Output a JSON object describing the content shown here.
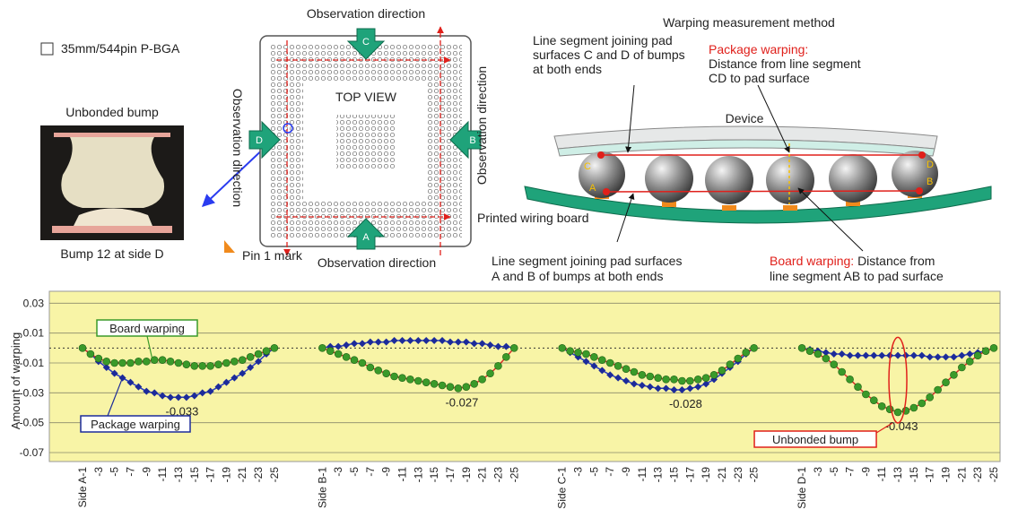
{
  "diagram": {
    "package_label": "35mm/544pin P-BGA",
    "photo_title": "Unbonded bump",
    "photo_caption": "Bump 12 at side D",
    "observation_direction": [
      "Observation direction",
      "Observation direction",
      "Observation direction",
      "Observation direction"
    ],
    "top_view": "TOP VIEW",
    "side_letters": [
      "C",
      "D",
      "B",
      "A"
    ],
    "pin_mark": "Pin 1 mark",
    "method_title": "Warping measurement method",
    "package_warping": {
      "term": "Package warping:",
      "lines": [
        "Distance from line segment",
        "CD to pad surface"
      ]
    },
    "cd_segment": [
      "Line segment joining pad",
      "surfaces C and D of bumps",
      "at both ends"
    ],
    "device": "Device",
    "board": "Printed wiring board",
    "bump_letters": [
      "C",
      "A",
      "D",
      "B"
    ],
    "ab_segment": [
      "Line segment joining pad surfaces",
      "A and B of bumps at both ends"
    ],
    "board_warping": {
      "term": "Board warping:",
      "lines": [
        "Distance from",
        "line segment AB to pad surface"
      ]
    }
  },
  "chart_data": {
    "type": "line",
    "y_label": "Amount of warping",
    "categories": [
      "Side A-1",
      null,
      "-3",
      null,
      "-5",
      null,
      "-7",
      null,
      "-9",
      null,
      "-11",
      null,
      "-13",
      null,
      "-15",
      null,
      "-17",
      null,
      "-19",
      null,
      "-21",
      null,
      "-23",
      null,
      "-25",
      null,
      null,
      null,
      null,
      null,
      "Side B-1",
      null,
      "-3",
      null,
      "-5",
      null,
      "-7",
      null,
      "-9",
      null,
      "-11",
      null,
      "-13",
      null,
      "-15",
      null,
      "-17",
      null,
      "-19",
      null,
      "-21",
      null,
      "-23",
      null,
      "-25",
      null,
      null,
      null,
      null,
      null,
      "Side C-1",
      null,
      "-3",
      null,
      "-5",
      null,
      "-7",
      null,
      "-9",
      null,
      "-11",
      null,
      "-13",
      null,
      "-15",
      null,
      "-17",
      null,
      "-19",
      null,
      "-21",
      null,
      "-23",
      null,
      "-25",
      null,
      null,
      null,
      null,
      null,
      "Side D-1",
      null,
      "-3",
      null,
      "-5",
      null,
      "-7",
      null,
      "-9",
      null,
      "-11",
      null,
      "-13",
      null,
      "-15",
      null,
      "-17",
      null,
      "-19",
      null,
      "-21",
      null,
      "-23",
      null,
      "-25"
    ],
    "series": [
      {
        "name": "Package warping",
        "color": "#1c2b9a",
        "line_color": "#2a3cc0",
        "values": [
          0,
          -0.004,
          -0.009,
          -0.013,
          -0.017,
          -0.02,
          -0.023,
          -0.026,
          -0.029,
          -0.03,
          -0.032,
          -0.033,
          -0.033,
          -0.033,
          -0.032,
          -0.03,
          -0.029,
          -0.026,
          -0.023,
          -0.02,
          -0.017,
          -0.013,
          -0.009,
          -0.004,
          0,
          null,
          null,
          null,
          null,
          null,
          0,
          0.001,
          0.001,
          0.002,
          0.003,
          0.003,
          0.004,
          0.004,
          0.004,
          0.005,
          0.005,
          0.005,
          0.005,
          0.005,
          0.005,
          0.005,
          0.004,
          0.004,
          0.004,
          0.003,
          0.003,
          0.002,
          0.001,
          0.001,
          0,
          null,
          null,
          null,
          null,
          null,
          0,
          -0.003,
          -0.006,
          -0.009,
          -0.012,
          -0.015,
          -0.018,
          -0.02,
          -0.022,
          -0.024,
          -0.025,
          -0.026,
          -0.027,
          -0.027,
          -0.028,
          -0.028,
          -0.027,
          -0.026,
          -0.024,
          -0.021,
          -0.017,
          -0.013,
          -0.009,
          -0.004,
          0,
          null,
          null,
          null,
          null,
          null,
          0,
          -0.001,
          -0.002,
          -0.003,
          -0.004,
          -0.004,
          -0.005,
          -0.005,
          -0.005,
          -0.005,
          -0.005,
          -0.005,
          -0.005,
          -0.005,
          -0.005,
          -0.005,
          -0.006,
          -0.006,
          -0.006,
          -0.006,
          -0.005,
          -0.004,
          -0.003,
          -0.002,
          0
        ],
        "value_labels": [
          null,
          null,
          null,
          null,
          null,
          null,
          null,
          null,
          null,
          null,
          null,
          null,
          "-0.033",
          null,
          null,
          null,
          null,
          null,
          null,
          null,
          null,
          null,
          null,
          null,
          null,
          null,
          null,
          null,
          null,
          null,
          null,
          null,
          null,
          null,
          null,
          null,
          null,
          null,
          null,
          null,
          null,
          null,
          null,
          null,
          null,
          null,
          null,
          null,
          null,
          null,
          null,
          null,
          null,
          null,
          null,
          null,
          null,
          null,
          null,
          null,
          null,
          null,
          null,
          null,
          null,
          null,
          null,
          null,
          null,
          null,
          null,
          null,
          null,
          null,
          null,
          "-0.028",
          null,
          null,
          null,
          null,
          null,
          null,
          null,
          null,
          null,
          null,
          null,
          null,
          null,
          null,
          null,
          null,
          null,
          null,
          null,
          null,
          null,
          null,
          null,
          null,
          null,
          null,
          null,
          null,
          null,
          null,
          null,
          null,
          null,
          null,
          null,
          null,
          null,
          null,
          null
        ]
      },
      {
        "name": "Board warping",
        "color": "#3a9a2a",
        "line_color": "#d9302a",
        "values": [
          0,
          -0.004,
          -0.007,
          -0.009,
          -0.01,
          -0.01,
          -0.01,
          -0.009,
          -0.009,
          -0.008,
          -0.008,
          -0.009,
          -0.01,
          -0.011,
          -0.012,
          -0.012,
          -0.012,
          -0.011,
          -0.01,
          -0.009,
          -0.008,
          -0.006,
          -0.004,
          -0.002,
          0,
          null,
          null,
          null,
          null,
          null,
          0,
          -0.002,
          -0.004,
          -0.006,
          -0.008,
          -0.01,
          -0.013,
          -0.015,
          -0.017,
          -0.019,
          -0.02,
          -0.021,
          -0.022,
          -0.023,
          -0.024,
          -0.025,
          -0.026,
          -0.027,
          -0.026,
          -0.024,
          -0.021,
          -0.017,
          -0.012,
          -0.006,
          0,
          null,
          null,
          null,
          null,
          null,
          0,
          -0.002,
          -0.003,
          -0.004,
          -0.006,
          -0.008,
          -0.01,
          -0.012,
          -0.014,
          -0.016,
          -0.018,
          -0.019,
          -0.02,
          -0.021,
          -0.021,
          -0.022,
          -0.022,
          -0.021,
          -0.02,
          -0.018,
          -0.015,
          -0.011,
          -0.007,
          -0.003,
          0,
          null,
          null,
          null,
          null,
          null,
          0,
          -0.002,
          -0.004,
          -0.007,
          -0.011,
          -0.016,
          -0.021,
          -0.026,
          -0.031,
          -0.035,
          -0.039,
          -0.041,
          -0.043,
          -0.042,
          -0.04,
          -0.037,
          -0.033,
          -0.028,
          -0.023,
          -0.018,
          -0.013,
          -0.009,
          -0.005,
          -0.002,
          0
        ],
        "value_labels": [
          null,
          null,
          null,
          null,
          null,
          null,
          null,
          null,
          null,
          null,
          null,
          null,
          null,
          null,
          null,
          null,
          null,
          null,
          null,
          null,
          null,
          null,
          null,
          null,
          null,
          null,
          null,
          null,
          null,
          null,
          null,
          null,
          null,
          null,
          null,
          null,
          null,
          null,
          null,
          null,
          null,
          null,
          null,
          null,
          null,
          null,
          null,
          "-0.027",
          null,
          null,
          null,
          null,
          null,
          null,
          null,
          null,
          null,
          null,
          null,
          null,
          null,
          null,
          null,
          null,
          null,
          null,
          null,
          null,
          null,
          null,
          null,
          null,
          null,
          null,
          null,
          null,
          null,
          null,
          null,
          null,
          null,
          null,
          null,
          null,
          null,
          null,
          null,
          null,
          null,
          null,
          null,
          null,
          null,
          null,
          null,
          null,
          null,
          null,
          null,
          null,
          null,
          null,
          "-0.043",
          null,
          null,
          null,
          null,
          null,
          null,
          null,
          null,
          null,
          null,
          null,
          null
        ]
      }
    ],
    "annotation": "Unbonded bump",
    "reference_line": 0,
    "ylim": [
      -0.076,
      0.038
    ],
    "yticks": [
      -0.07,
      -0.05,
      -0.03,
      -0.01,
      0.01,
      0.03
    ],
    "grid": true,
    "background": "#f8f4a6"
  }
}
